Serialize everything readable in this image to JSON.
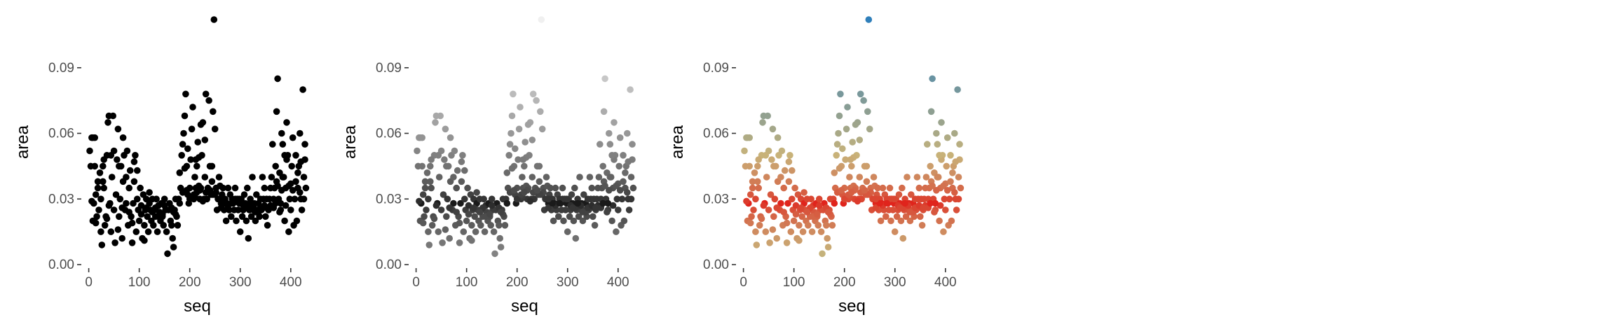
{
  "chart_data": [
    {
      "type": "scatter",
      "xlabel": "seq",
      "ylabel": "area",
      "color_mode": "solid",
      "point_color": "#000000",
      "xticks": [
        0,
        100,
        200,
        300,
        400
      ],
      "yticks": [
        "0.00",
        "0.03",
        "0.06",
        "0.09"
      ],
      "xlim": [
        -5,
        435
      ],
      "ylim": [
        0.0,
        0.112
      ],
      "grid": false,
      "legend": "none"
    },
    {
      "type": "scatter",
      "xlabel": "seq",
      "ylabel": "area",
      "color_mode": "grayscale_by_distance_from_median",
      "point_color_near": "#1a1a1a",
      "point_color_far": "#f0f0f0",
      "xticks": [
        0,
        100,
        200,
        300,
        400
      ],
      "yticks": [
        "0.00",
        "0.03",
        "0.06",
        "0.09"
      ],
      "xlim": [
        -5,
        435
      ],
      "ylim": [
        0.0,
        0.112
      ],
      "grid": false,
      "legend": "none"
    },
    {
      "type": "scatter",
      "xlabel": "seq",
      "ylabel": "area",
      "color_mode": "diverging_by_distance_from_median",
      "point_color_near": "#e0241c",
      "point_color_mid": "#c8b37a",
      "point_color_far": "#2f7fba",
      "xticks": [
        0,
        100,
        200,
        300,
        400
      ],
      "yticks": [
        "0.00",
        "0.03",
        "0.06",
        "0.09"
      ],
      "xlim": [
        -5,
        435
      ],
      "ylim": [
        0.0,
        0.112
      ],
      "grid": false,
      "legend": "none"
    }
  ],
  "points": [
    [
      2,
      0.052
    ],
    [
      4,
      0.045
    ],
    [
      6,
      0.058
    ],
    [
      8,
      0.02
    ],
    [
      10,
      0.028
    ],
    [
      12,
      0.058
    ],
    [
      14,
      0.032
    ],
    [
      16,
      0.022
    ],
    [
      18,
      0.035
    ],
    [
      20,
      0.025
    ],
    [
      22,
      0.042
    ],
    [
      24,
      0.03
    ],
    [
      26,
      0.009
    ],
    [
      28,
      0.045
    ],
    [
      30,
      0.035
    ],
    [
      32,
      0.018
    ],
    [
      34,
      0.022
    ],
    [
      36,
      0.05
    ],
    [
      38,
      0.065
    ],
    [
      40,
      0.068
    ],
    [
      42,
      0.028
    ],
    [
      44,
      0.015
    ],
    [
      46,
      0.04
    ],
    [
      48,
      0.068
    ],
    [
      50,
      0.025
    ],
    [
      52,
      0.01
    ],
    [
      54,
      0.032
    ],
    [
      56,
      0.048
    ],
    [
      58,
      0.062
    ],
    [
      60,
      0.022
    ],
    [
      62,
      0.03
    ],
    [
      64,
      0.045
    ],
    [
      66,
      0.012
    ],
    [
      68,
      0.038
    ],
    [
      70,
      0.05
    ],
    [
      72,
      0.025
    ],
    [
      74,
      0.028
    ],
    [
      76,
      0.052
    ],
    [
      78,
      0.018
    ],
    [
      80,
      0.035
    ],
    [
      82,
      0.043
    ],
    [
      84,
      0.022
    ],
    [
      86,
      0.01
    ],
    [
      88,
      0.028
    ],
    [
      90,
      0.038
    ],
    [
      92,
      0.05
    ],
    [
      94,
      0.015
    ],
    [
      96,
      0.03
    ],
    [
      98,
      0.025
    ],
    [
      100,
      0.02
    ],
    [
      102,
      0.035
    ],
    [
      104,
      0.027
    ],
    [
      106,
      0.012
    ],
    [
      108,
      0.032
    ],
    [
      110,
      0.018
    ],
    [
      112,
      0.025
    ],
    [
      114,
      0.03
    ],
    [
      116,
      0.022
    ],
    [
      118,
      0.015
    ],
    [
      120,
      0.028
    ],
    [
      122,
      0.025
    ],
    [
      124,
      0.02
    ],
    [
      126,
      0.03
    ],
    [
      128,
      0.018
    ],
    [
      130,
      0.025
    ],
    [
      132,
      0.022
    ],
    [
      134,
      0.03
    ],
    [
      136,
      0.015
    ],
    [
      138,
      0.027
    ],
    [
      140,
      0.024
    ],
    [
      142,
      0.02
    ],
    [
      144,
      0.028
    ],
    [
      146,
      0.022
    ],
    [
      148,
      0.018
    ],
    [
      150,
      0.03
    ],
    [
      152,
      0.025
    ],
    [
      154,
      0.015
    ],
    [
      156,
      0.005
    ],
    [
      158,
      0.025
    ],
    [
      160,
      0.028
    ],
    [
      162,
      0.02
    ],
    [
      164,
      0.018
    ],
    [
      166,
      0.012
    ],
    [
      168,
      0.008
    ],
    [
      170,
      0.025
    ],
    [
      172,
      0.03
    ],
    [
      174,
      0.022
    ],
    [
      176,
      0.018
    ],
    [
      178,
      0.03
    ],
    [
      180,
      0.042
    ],
    [
      182,
      0.035
    ],
    [
      184,
      0.05
    ],
    [
      186,
      0.055
    ],
    [
      188,
      0.06
    ],
    [
      190,
      0.068
    ],
    [
      192,
      0.078
    ],
    [
      194,
      0.045
    ],
    [
      196,
      0.032
    ],
    [
      198,
      0.028
    ],
    [
      200,
      0.035
    ],
    [
      202,
      0.048
    ],
    [
      204,
      0.062
    ],
    [
      206,
      0.072
    ],
    [
      208,
      0.03
    ],
    [
      210,
      0.04
    ],
    [
      212,
      0.035
    ],
    [
      214,
      0.045
    ],
    [
      216,
      0.056
    ],
    [
      218,
      0.036
    ],
    [
      220,
      0.03
    ],
    [
      222,
      0.035
    ],
    [
      224,
      0.05
    ],
    [
      226,
      0.065
    ],
    [
      228,
      0.03
    ],
    [
      230,
      0.04
    ],
    [
      232,
      0.078
    ],
    [
      234,
      0.03
    ],
    [
      236,
      0.035
    ],
    [
      238,
      0.075
    ],
    [
      240,
      0.045
    ],
    [
      242,
      0.032
    ],
    [
      244,
      0.038
    ],
    [
      246,
      0.07
    ],
    [
      248,
      0.112
    ],
    [
      250,
      0.032
    ],
    [
      252,
      0.035
    ],
    [
      254,
      0.025
    ],
    [
      256,
      0.03
    ],
    [
      258,
      0.04
    ],
    [
      260,
      0.036
    ],
    [
      262,
      0.028
    ],
    [
      264,
      0.032
    ],
    [
      266,
      0.035
    ],
    [
      268,
      0.025
    ],
    [
      270,
      0.03
    ],
    [
      272,
      0.02
    ],
    [
      274,
      0.028
    ],
    [
      276,
      0.035
    ],
    [
      278,
      0.025
    ],
    [
      280,
      0.032
    ],
    [
      282,
      0.022
    ],
    [
      284,
      0.03
    ],
    [
      286,
      0.028
    ],
    [
      288,
      0.025
    ],
    [
      290,
      0.035
    ],
    [
      292,
      0.02
    ],
    [
      294,
      0.03
    ],
    [
      296,
      0.025
    ],
    [
      298,
      0.028
    ],
    [
      300,
      0.015
    ],
    [
      302,
      0.03
    ],
    [
      304,
      0.022
    ],
    [
      306,
      0.025
    ],
    [
      308,
      0.032
    ],
    [
      310,
      0.028
    ],
    [
      312,
      0.02
    ],
    [
      314,
      0.035
    ],
    [
      316,
      0.012
    ],
    [
      318,
      0.025
    ],
    [
      320,
      0.03
    ],
    [
      322,
      0.022
    ],
    [
      324,
      0.04
    ],
    [
      326,
      0.025
    ],
    [
      328,
      0.028
    ],
    [
      330,
      0.02
    ],
    [
      332,
      0.032
    ],
    [
      334,
      0.025
    ],
    [
      336,
      0.028
    ],
    [
      338,
      0.022
    ],
    [
      340,
      0.03
    ],
    [
      342,
      0.025
    ],
    [
      344,
      0.04
    ],
    [
      346,
      0.03
    ],
    [
      348,
      0.035
    ],
    [
      350,
      0.022
    ],
    [
      352,
      0.03
    ],
    [
      354,
      0.018
    ],
    [
      356,
      0.025
    ],
    [
      358,
      0.03
    ],
    [
      360,
      0.035
    ],
    [
      362,
      0.04
    ],
    [
      364,
      0.055
    ],
    [
      366,
      0.03
    ],
    [
      368,
      0.035
    ],
    [
      370,
      0.045
    ],
    [
      372,
      0.07
    ],
    [
      374,
      0.085
    ],
    [
      376,
      0.03
    ],
    [
      378,
      0.042
    ],
    [
      380,
      0.025
    ],
    [
      382,
      0.06
    ],
    [
      384,
      0.055
    ],
    [
      386,
      0.04
    ],
    [
      388,
      0.02
    ],
    [
      390,
      0.035
    ],
    [
      392,
      0.065
    ],
    [
      394,
      0.05
    ],
    [
      396,
      0.015
    ],
    [
      398,
      0.03
    ],
    [
      400,
      0.025
    ],
    [
      402,
      0.045
    ],
    [
      404,
      0.058
    ],
    [
      406,
      0.018
    ],
    [
      408,
      0.03
    ],
    [
      410,
      0.05
    ],
    [
      412,
      0.02
    ],
    [
      414,
      0.035
    ],
    [
      416,
      0.045
    ],
    [
      418,
      0.06
    ],
    [
      420,
      0.03
    ],
    [
      422,
      0.025
    ],
    [
      424,
      0.08
    ],
    [
      426,
      0.04
    ],
    [
      428,
      0.048
    ],
    [
      430,
      0.035
    ],
    [
      360,
      0.027
    ],
    [
      366,
      0.026
    ],
    [
      370,
      0.028
    ],
    [
      378,
      0.024
    ],
    [
      390,
      0.027
    ],
    [
      24,
      0.015
    ],
    [
      58,
      0.016
    ],
    [
      110,
      0.011
    ],
    [
      132,
      0.026
    ],
    [
      172,
      0.023
    ],
    [
      210,
      0.031
    ],
    [
      232,
      0.033
    ],
    [
      262,
      0.026
    ],
    [
      298,
      0.03
    ],
    [
      336,
      0.024
    ],
    [
      14,
      0.019
    ],
    [
      36,
      0.021
    ],
    [
      66,
      0.026
    ],
    [
      86,
      0.019
    ],
    [
      114,
      0.026
    ],
    [
      138,
      0.022
    ],
    [
      164,
      0.026
    ],
    [
      186,
      0.033
    ],
    [
      220,
      0.034
    ],
    [
      252,
      0.033
    ],
    [
      276,
      0.027
    ],
    [
      306,
      0.027
    ],
    [
      330,
      0.024
    ],
    [
      352,
      0.026
    ],
    [
      382,
      0.034
    ],
    [
      400,
      0.037
    ],
    [
      28,
      0.038
    ],
    [
      50,
      0.052
    ],
    [
      74,
      0.04
    ],
    [
      96,
      0.043
    ],
    [
      120,
      0.033
    ],
    [
      150,
      0.027
    ],
    [
      180,
      0.028
    ],
    [
      200,
      0.03
    ],
    [
      208,
      0.032
    ],
    [
      226,
      0.029
    ],
    [
      246,
      0.032
    ],
    [
      270,
      0.028
    ],
    [
      290,
      0.03
    ],
    [
      316,
      0.026
    ],
    [
      326,
      0.027
    ],
    [
      340,
      0.026
    ],
    [
      372,
      0.038
    ],
    [
      384,
      0.04
    ],
    [
      396,
      0.036
    ],
    [
      410,
      0.038
    ],
    [
      418,
      0.033
    ],
    [
      426,
      0.03
    ],
    [
      6,
      0.029
    ],
    [
      40,
      0.027
    ],
    [
      80,
      0.024
    ],
    [
      104,
      0.023
    ],
    [
      126,
      0.024
    ],
    [
      146,
      0.023
    ],
    [
      168,
      0.024
    ],
    [
      194,
      0.034
    ],
    [
      214,
      0.033
    ],
    [
      240,
      0.034
    ],
    [
      262,
      0.03
    ],
    [
      284,
      0.028
    ],
    [
      310,
      0.026
    ],
    [
      320,
      0.028
    ],
    [
      348,
      0.027
    ],
    [
      356,
      0.026
    ],
    [
      374,
      0.036
    ],
    [
      404,
      0.034
    ],
    [
      414,
      0.042
    ],
    [
      420,
      0.047
    ],
    [
      428,
      0.055
    ],
    [
      392,
      0.048
    ],
    [
      388,
      0.05
    ],
    [
      380,
      0.028
    ],
    [
      44,
      0.05
    ],
    [
      60,
      0.045
    ],
    [
      68,
      0.058
    ],
    [
      90,
      0.047
    ],
    [
      18,
      0.038
    ],
    [
      12,
      0.045
    ],
    [
      8,
      0.058
    ],
    [
      30,
      0.048
    ],
    [
      244,
      0.045
    ],
    [
      250,
      0.062
    ],
    [
      230,
      0.057
    ],
    [
      222,
      0.064
    ],
    [
      218,
      0.049
    ],
    [
      212,
      0.048
    ],
    [
      196,
      0.053
    ],
    [
      190,
      0.044
    ]
  ]
}
